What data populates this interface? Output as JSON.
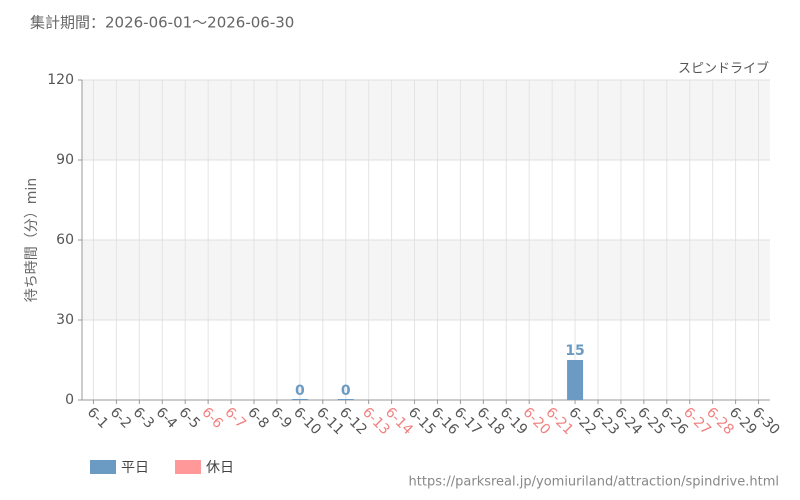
{
  "chart_data": {
    "type": "bar",
    "title": "集計期間：2026-06-01～2026-06-30",
    "subtitle": "スピンドライブ",
    "y_label": "待ち時間（分）min",
    "source": "https://parksreal.jp/yomiuriland/attraction/spindrive.html",
    "categories": [
      "6-1",
      "6-2",
      "6-3",
      "6-4",
      "6-5",
      "6-6",
      "6-7",
      "6-8",
      "6-9",
      "6-10",
      "6-11",
      "6-12",
      "6-13",
      "6-14",
      "6-15",
      "6-16",
      "6-17",
      "6-18",
      "6-19",
      "6-20",
      "6-21",
      "6-22",
      "6-23",
      "6-24",
      "6-25",
      "6-26",
      "6-27",
      "6-28",
      "6-29",
      "6-30"
    ],
    "category_colors": [
      "#555",
      "#555",
      "#555",
      "#555",
      "#555",
      "#f08080",
      "#f08080",
      "#555",
      "#555",
      "#555",
      "#555",
      "#555",
      "#f08080",
      "#f08080",
      "#555",
      "#555",
      "#555",
      "#555",
      "#555",
      "#f08080",
      "#f08080",
      "#555",
      "#555",
      "#555",
      "#555",
      "#555",
      "#f08080",
      "#f08080",
      "#555",
      "#555"
    ],
    "series": [
      {
        "name": "平日",
        "color": "#6b9bc3",
        "values": [
          null,
          null,
          null,
          null,
          null,
          null,
          null,
          null,
          null,
          0,
          null,
          0,
          null,
          null,
          null,
          null,
          null,
          null,
          null,
          null,
          null,
          15,
          null,
          null,
          null,
          null,
          null,
          null,
          null,
          null
        ]
      },
      {
        "name": "休日",
        "color": "#ff9999",
        "values": [
          null,
          null,
          null,
          null,
          null,
          null,
          null,
          null,
          null,
          null,
          null,
          null,
          null,
          null,
          null,
          null,
          null,
          null,
          null,
          null,
          null,
          null,
          null,
          null,
          null,
          null,
          null,
          null,
          null,
          null
        ]
      }
    ],
    "ylim": [
      0,
      120
    ],
    "yticks": [
      0,
      30,
      60,
      90,
      120
    ],
    "grid": true
  }
}
